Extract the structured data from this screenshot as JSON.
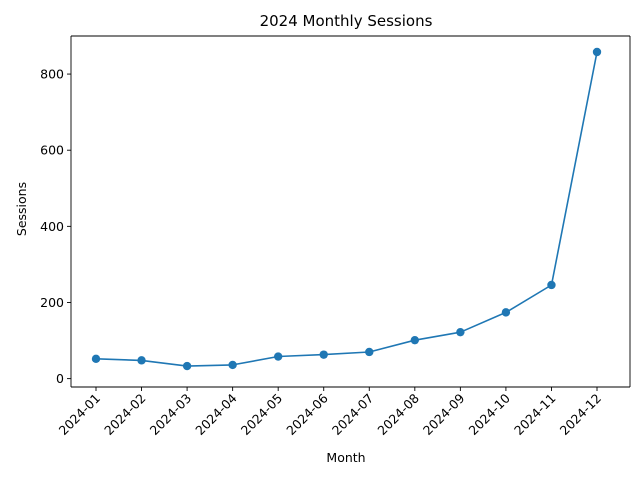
{
  "chart_data": {
    "type": "line",
    "title": "2024 Monthly Sessions",
    "xlabel": "Month",
    "ylabel": "Sessions",
    "categories": [
      "2024-01",
      "2024-02",
      "2024-03",
      "2024-04",
      "2024-05",
      "2024-06",
      "2024-07",
      "2024-08",
      "2024-09",
      "2024-10",
      "2024-11",
      "2024-12"
    ],
    "series": [
      {
        "values": [
          52,
          48,
          33,
          36,
          58,
          63,
          70,
          101,
          122,
          174,
          246,
          858
        ]
      }
    ],
    "ylim": [
      -22,
      900
    ],
    "yticks": [
      0,
      200,
      400,
      600,
      800
    ],
    "grid": false,
    "legend": "none",
    "color": "#1f77b4"
  }
}
